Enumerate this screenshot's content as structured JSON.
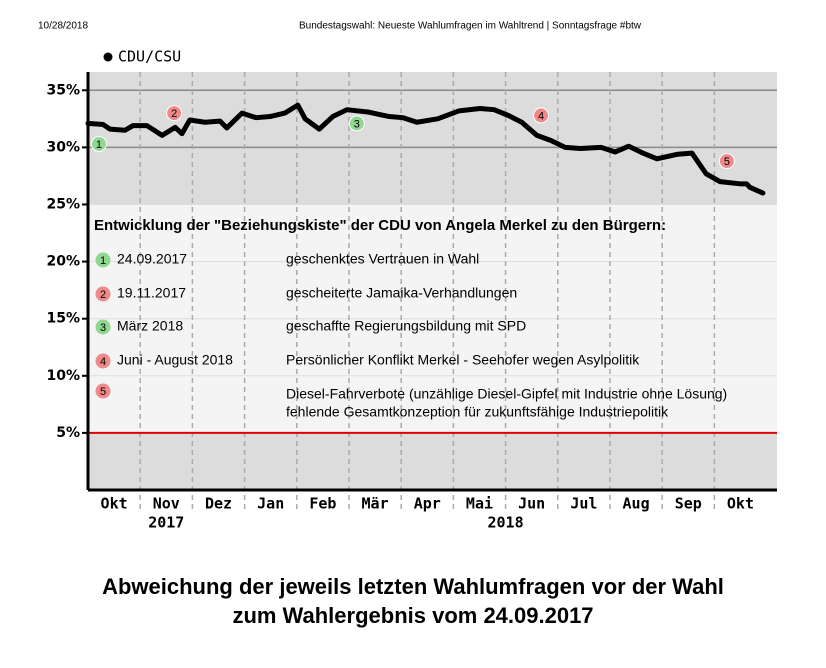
{
  "header": {
    "date": "10/28/2018",
    "title": "Bundestagswahl: Neueste Wahlumfragen im Wahltrend | Sonntagsfrage #btw"
  },
  "chart_data": {
    "type": "line",
    "caption": [
      "Abweichung der jeweils letzten Wahlumfragen vor der Wahl",
      "zum Wahlergebnis vom 24.09.2017"
    ],
    "x": [
      0.0,
      0.29,
      0.42,
      0.71,
      0.86,
      1.13,
      1.42,
      1.67,
      1.8,
      1.95,
      2.24,
      2.53,
      2.66,
      2.95,
      3.22,
      3.49,
      3.77,
      4.02,
      4.16,
      4.43,
      4.69,
      4.96,
      5.36,
      5.77,
      6.03,
      6.3,
      6.7,
      7.11,
      7.51,
      7.78,
      8.05,
      8.31,
      8.6,
      8.87,
      9.14,
      9.43,
      9.83,
      10.1,
      10.36,
      10.63,
      10.9,
      11.3,
      11.57,
      11.84,
      12.11,
      12.51,
      12.62,
      12.68,
      12.93
    ],
    "series": [
      {
        "name": "CDU/CSU",
        "color": "#000000",
        "values": [
          32.1,
          32.0,
          31.6,
          31.5,
          31.9,
          31.9,
          31.05,
          31.75,
          31.2,
          32.4,
          32.2,
          32.3,
          31.7,
          33.0,
          32.6,
          32.7,
          33.0,
          33.7,
          32.5,
          31.6,
          32.7,
          33.3,
          33.1,
          32.7,
          32.6,
          32.2,
          32.5,
          33.2,
          33.4,
          33.3,
          32.8,
          32.2,
          31.05,
          30.6,
          30.0,
          29.9,
          30.0,
          29.6,
          30.1,
          29.5,
          29.0,
          29.4,
          29.5,
          27.7,
          27.0,
          26.8,
          26.8,
          26.5,
          26.0
        ]
      }
    ],
    "xlim": [
      0,
      13.2
    ],
    "xticks": [
      {
        "value": 0.5,
        "label": "Okt"
      },
      {
        "value": 1.5,
        "label": "Nov"
      },
      {
        "value": 2.5,
        "label": "Dez"
      },
      {
        "value": 3.5,
        "label": "Jan"
      },
      {
        "value": 4.5,
        "label": "Feb"
      },
      {
        "value": 5.5,
        "label": "Mär"
      },
      {
        "value": 6.5,
        "label": "Apr"
      },
      {
        "value": 7.5,
        "label": "Mai"
      },
      {
        "value": 8.5,
        "label": "Jun"
      },
      {
        "value": 9.5,
        "label": "Jul"
      },
      {
        "value": 10.5,
        "label": "Aug"
      },
      {
        "value": 11.5,
        "label": "Sep"
      },
      {
        "value": 12.5,
        "label": "Okt"
      }
    ],
    "xgrid": [
      1,
      2,
      3,
      4,
      5,
      6,
      7,
      8,
      9,
      10,
      11,
      12
    ],
    "x_groups": [
      {
        "value": 1.5,
        "label": "2017"
      },
      {
        "value": 8,
        "label": "2018"
      }
    ],
    "ylim": [
      0,
      36.6
    ],
    "yticks": [
      {
        "value": 5,
        "label": "5%"
      },
      {
        "value": 10,
        "label": "10%"
      },
      {
        "value": 15,
        "label": "15%"
      },
      {
        "value": 20,
        "label": "20%"
      },
      {
        "value": 25,
        "label": "25%"
      },
      {
        "value": 30,
        "label": "30%"
      },
      {
        "value": 35,
        "label": "35%"
      }
    ],
    "grid": true,
    "band": {
      "from": 5,
      "to": 25,
      "color": "#f4f4f4"
    },
    "reference_line": {
      "value": 5,
      "color": "#e00000"
    },
    "markers": [
      {
        "label": "1",
        "x": 0.21,
        "y": 30.3,
        "color": "#90d890"
      },
      {
        "label": "2",
        "x": 1.65,
        "y": 33.0,
        "color": "#f08a8a"
      },
      {
        "label": "3",
        "x": 5.15,
        "y": 32.1,
        "color": "#90d890"
      },
      {
        "label": "4",
        "x": 8.68,
        "y": 32.8,
        "color": "#f08a8a"
      },
      {
        "label": "5",
        "x": 12.24,
        "y": 28.8,
        "color": "#f08a8a"
      }
    ],
    "notes": {
      "title": "Entwicklung der \"Beziehungskiste\" der CDU von Angela Merkel zu den Bürgern:",
      "items": [
        {
          "label": "1",
          "date": "24.09.2017",
          "text": [
            "geschenktes Vertrauen in Wahl"
          ]
        },
        {
          "label": "2",
          "date": "19.11.2017",
          "text": [
            "gescheiterte Jamaika-Verhandlungen"
          ]
        },
        {
          "label": "3",
          "date": "März 2018",
          "text": [
            "geschaffte Regierungsbildung mit SPD"
          ]
        },
        {
          "label": "4",
          "date": "Juni - August 2018",
          "text": [
            "Persönlicher Konflikt Merkel - Seehofer wegen Asylpolitik"
          ]
        },
        {
          "label": "5",
          "text": [
            "Diesel-Fahrverbote (unzählige Diesel-Gipfel mit Industrie ohne Lösung)",
            "fehlende Gesamtkonzeption für zukunftsfähige Industriepolitik"
          ]
        }
      ]
    }
  }
}
